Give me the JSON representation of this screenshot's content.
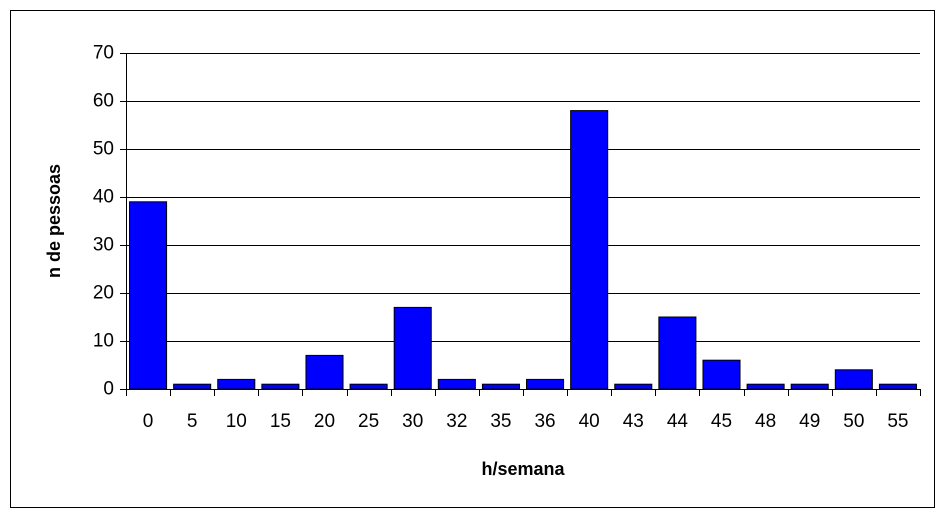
{
  "chart_data": {
    "type": "bar",
    "x_label": "h/semana",
    "y_label": "n de pessoas",
    "categories": [
      "0",
      "5",
      "10",
      "15",
      "20",
      "25",
      "30",
      "32",
      "35",
      "36",
      "40",
      "43",
      "44",
      "45",
      "48",
      "49",
      "50",
      "55"
    ],
    "values": [
      39,
      1,
      2,
      1,
      7,
      1,
      17,
      2,
      1,
      2,
      58,
      1,
      15,
      6,
      1,
      1,
      4,
      1
    ],
    "color": "#0000ff",
    "ylim": [
      0,
      70
    ],
    "yticks": [
      0,
      10,
      20,
      30,
      40,
      50,
      60,
      70
    ],
    "grid": true
  }
}
